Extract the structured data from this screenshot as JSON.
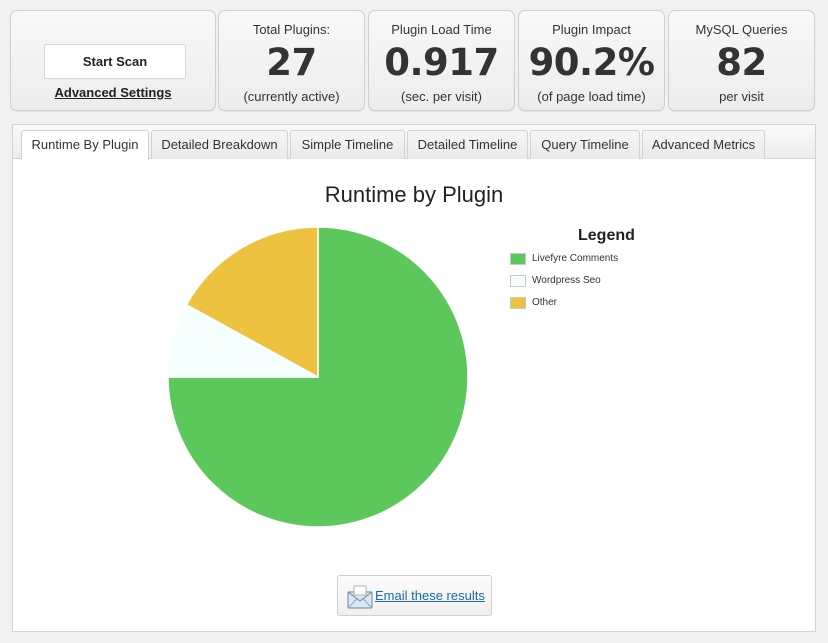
{
  "scan": {
    "start_label": "Start Scan",
    "advanced_label": "Advanced Settings"
  },
  "stats": [
    {
      "label": "Total Plugins:",
      "value": "27",
      "sub": "(currently active)"
    },
    {
      "label": "Plugin Load Time",
      "value": "0.917",
      "sub": "(sec. per visit)"
    },
    {
      "label": "Plugin Impact",
      "value": "90.2%",
      "sub": "(of page load time)"
    },
    {
      "label": "MySQL Queries",
      "value": "82",
      "sub": "per visit"
    }
  ],
  "tabs": [
    {
      "label": "Runtime By Plugin",
      "active": true
    },
    {
      "label": "Detailed Breakdown",
      "active": false
    },
    {
      "label": "Simple Timeline",
      "active": false
    },
    {
      "label": "Detailed Timeline",
      "active": false
    },
    {
      "label": "Query Timeline",
      "active": false
    },
    {
      "label": "Advanced Metrics",
      "active": false
    }
  ],
  "chart_data": {
    "type": "pie",
    "title": "Runtime by Plugin",
    "legend_title": "Legend",
    "legend_position": "right",
    "slices": [
      {
        "name": "Livefyre Comments",
        "value": 75,
        "color": "#5cc85c"
      },
      {
        "name": "Wordpress Seo",
        "value": 8,
        "color": "#f4fffe"
      },
      {
        "name": "Other",
        "value": 17,
        "color": "#ecc23e"
      }
    ]
  },
  "email": {
    "label": "Email these results",
    "icon": "envelope-icon"
  }
}
